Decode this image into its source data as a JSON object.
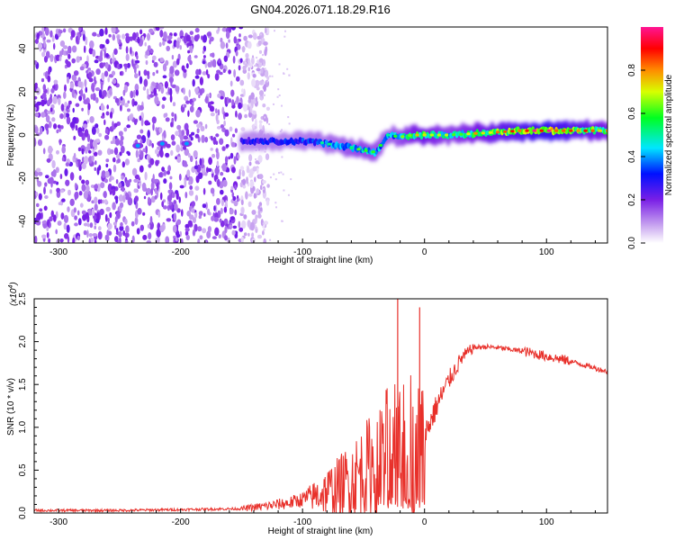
{
  "figure": {
    "title": "GN04.2026.071.18.29.R16"
  },
  "chart_data": [
    {
      "type": "heatmap",
      "xlabel": "Height of straight line (km)",
      "ylabel": "Frequency (Hz)",
      "xlim": [
        -320,
        150
      ],
      "ylim": [
        -50,
        50
      ],
      "xticks": [
        -300,
        -200,
        -100,
        0,
        100
      ],
      "yticks": [
        -40,
        -20,
        0,
        20,
        40
      ],
      "colorbar": {
        "label": "Normalized spectral amplitude",
        "range": [
          0.0,
          1.0
        ],
        "ticks": [
          "0.0",
          "0.2",
          "0.4",
          "0.6",
          "0.8"
        ],
        "colormap": [
          "#ffffff",
          "#8a2be2",
          "#0000ff",
          "#00ffff",
          "#00ff00",
          "#ffff00",
          "#ff8000",
          "#ff0000",
          "#ff1493"
        ]
      },
      "features": [
        {
          "name": "noise",
          "x_range": [
            -320,
            -140
          ],
          "freq_range": [
            -50,
            50
          ],
          "amplitude": 0.15
        },
        {
          "name": "weak-blobs",
          "x": [
            -235,
            -215,
            -195
          ],
          "freq": [
            -5,
            -4,
            -4
          ],
          "amplitude": 0.4
        },
        {
          "name": "trace",
          "x": [
            -150,
            -130,
            -110,
            -90,
            -70,
            -50,
            -40,
            -30,
            -20,
            -10,
            0,
            20,
            50,
            80,
            100,
            130,
            150
          ],
          "freq": [
            -3,
            -3,
            -3,
            -3,
            -5,
            -7,
            -8,
            0,
            -1,
            0,
            0,
            0,
            1,
            2,
            2,
            2,
            2
          ],
          "amplitude": [
            0.35,
            0.4,
            0.4,
            0.45,
            0.5,
            0.6,
            0.55,
            0.5,
            0.55,
            0.7,
            0.75,
            0.6,
            0.75,
            0.85,
            0.95,
            0.8,
            0.7
          ]
        }
      ]
    },
    {
      "type": "line",
      "xlabel": "Height of straight line (km)",
      "ylabel": "SNR (10 * v/v)",
      "y_multiplier": "(x10",
      "y_multiplier_exp": "4",
      "xlim": [
        -320,
        150
      ],
      "ylim": [
        0,
        25000
      ],
      "xticks": [
        -300,
        -200,
        -100,
        0,
        100
      ],
      "yticks": [
        0,
        5000,
        10000,
        15000,
        20000,
        25000
      ],
      "ytick_labels": [
        "0.0",
        "0.5",
        "1.0",
        "1.5",
        "2.0",
        "2.5"
      ],
      "color": "#e8302a",
      "series": [
        {
          "name": "SNR",
          "x": [
            -320,
            -250,
            -200,
            -150,
            -130,
            -110,
            -100,
            -90,
            -80,
            -70,
            -60,
            -50,
            -40,
            -30,
            -25,
            -20,
            -15,
            -10,
            -5,
            0,
            10,
            20,
            30,
            40,
            50,
            60,
            70,
            80,
            90,
            100,
            110,
            120,
            130,
            140,
            150
          ],
          "y": [
            300,
            300,
            400,
            500,
            800,
            1200,
            1600,
            2000,
            2500,
            3000,
            3800,
            4800,
            6000,
            7500,
            9000,
            11000,
            9000,
            8000,
            6000,
            9000,
            12500,
            15500,
            18000,
            19300,
            19400,
            19300,
            19100,
            18900,
            18600,
            18300,
            18000,
            17700,
            17300,
            16900,
            16500
          ]
        },
        {
          "name": "spikes",
          "x": [
            -22,
            -4
          ],
          "y": [
            25000,
            24000
          ]
        }
      ]
    }
  ]
}
